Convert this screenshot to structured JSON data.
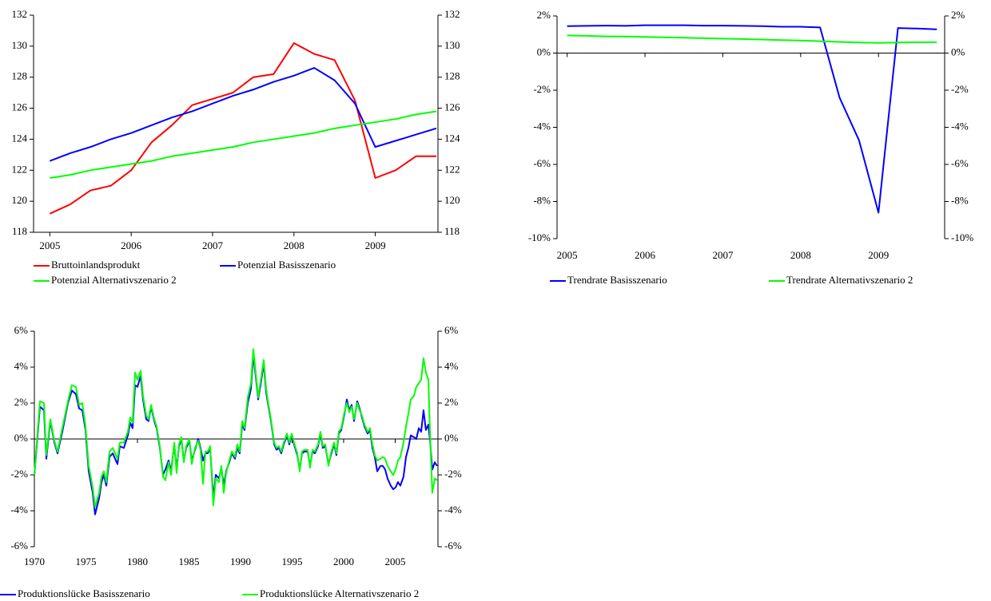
{
  "chart_data": [
    {
      "type": "line",
      "x": [
        2005,
        2005.25,
        2005.5,
        2005.75,
        2006,
        2006.25,
        2006.5,
        2006.75,
        2007,
        2007.25,
        2007.5,
        2007.75,
        2008,
        2008.25,
        2008.5,
        2008.75,
        2009,
        2009.25,
        2009.5,
        2009.75
      ],
      "xlim": [
        2004.8,
        2009.77
      ],
      "xticks": [
        2005,
        2006,
        2007,
        2008,
        2009
      ],
      "ylim": [
        118,
        132
      ],
      "yticks": [
        118,
        120,
        122,
        124,
        126,
        128,
        130,
        132
      ],
      "y2lim": [
        118,
        132
      ],
      "y2ticks": [
        118,
        120,
        122,
        124,
        126,
        128,
        130,
        132
      ],
      "series": [
        {
          "name": "Bruttoinlandsprodukt",
          "color": "#ff0000",
          "values": [
            119.2,
            119.8,
            120.7,
            121.0,
            122.0,
            123.8,
            124.9,
            126.2,
            126.6,
            127.0,
            128.0,
            128.2,
            130.2,
            129.5,
            129.1,
            126.5,
            121.5,
            122.0,
            122.9,
            122.9
          ]
        },
        {
          "name": "Potenzial Basisszenario",
          "color": "#0000ff",
          "values": [
            122.6,
            123.1,
            123.5,
            124.0,
            124.4,
            124.9,
            125.4,
            125.8,
            126.3,
            126.8,
            127.2,
            127.7,
            128.1,
            128.6,
            127.8,
            126.3,
            123.5,
            123.9,
            124.3,
            124.7
          ]
        },
        {
          "name": "Potenzial Alternativszenario 2",
          "color": "#00ff00",
          "values": [
            121.5,
            121.7,
            122.0,
            122.2,
            122.4,
            122.6,
            122.9,
            123.1,
            123.3,
            123.5,
            123.8,
            124.0,
            124.2,
            124.4,
            124.7,
            124.9,
            125.1,
            125.3,
            125.6,
            125.8
          ]
        }
      ]
    },
    {
      "type": "line",
      "x": [
        2005,
        2005.25,
        2005.5,
        2005.75,
        2006,
        2006.25,
        2006.5,
        2006.75,
        2007,
        2007.25,
        2007.5,
        2007.75,
        2008,
        2008.25,
        2008.5,
        2008.75,
        2009,
        2009.25,
        2009.5,
        2009.75
      ],
      "xlim": [
        2004.87,
        2009.85
      ],
      "xticks": [
        2005,
        2006,
        2007,
        2008,
        2009
      ],
      "ylim": [
        -10,
        2
      ],
      "yticks": [
        {
          "value": -10,
          "label": "-10%"
        },
        {
          "value": -8,
          "label": "-8%"
        },
        {
          "value": -6,
          "label": "-6%"
        },
        {
          "value": -4,
          "label": "-4%"
        },
        {
          "value": -2,
          "label": "-2%"
        },
        {
          "value": 0,
          "label": "0%"
        },
        {
          "value": 2,
          "label": "2%"
        }
      ],
      "y2lim": [
        -10,
        2
      ],
      "y2ticks": [
        {
          "value": -10,
          "label": "-10%"
        },
        {
          "value": -8,
          "label": "-8%"
        },
        {
          "value": -6,
          "label": "-6%"
        },
        {
          "value": -4,
          "label": "-4%"
        },
        {
          "value": -2,
          "label": "-2%"
        },
        {
          "value": 0,
          "label": "0%"
        },
        {
          "value": 2,
          "label": "2%"
        }
      ],
      "series": [
        {
          "name": "Trendrate Basisszenario",
          "color": "#0000ff",
          "values": [
            1.45,
            1.47,
            1.48,
            1.47,
            1.5,
            1.5,
            1.5,
            1.48,
            1.48,
            1.47,
            1.45,
            1.42,
            1.42,
            1.38,
            -2.4,
            -4.7,
            -8.6,
            1.35,
            1.32,
            1.28
          ]
        },
        {
          "name": "Trendrate Alternativszenario 2",
          "color": "#00ff00",
          "values": [
            0.95,
            0.93,
            0.9,
            0.89,
            0.87,
            0.85,
            0.83,
            0.8,
            0.78,
            0.76,
            0.73,
            0.7,
            0.68,
            0.64,
            0.6,
            0.57,
            0.55,
            0.57,
            0.58,
            0.58
          ]
        }
      ]
    },
    {
      "type": "line",
      "x": [
        1970.0,
        1970.54,
        1970.93,
        1971.16,
        1971.55,
        1971.94,
        1972.25,
        1972.71,
        1973.26,
        1973.64,
        1974.03,
        1974.34,
        1974.65,
        1974.96,
        1975.27,
        1975.66,
        1975.89,
        1976.28,
        1976.51,
        1976.74,
        1976.98,
        1977.29,
        1977.6,
        1978.06,
        1978.29,
        1978.68,
        1979.07,
        1979.3,
        1979.53,
        1979.77,
        1980.0,
        1980.31,
        1980.54,
        1980.85,
        1981.08,
        1981.32,
        1981.63,
        1981.86,
        1982.17,
        1982.48,
        1982.71,
        1983.02,
        1983.26,
        1983.57,
        1983.8,
        1984.03,
        1984.26,
        1984.5,
        1984.73,
        1985.04,
        1985.27,
        1985.58,
        1985.89,
        1986.12,
        1986.36,
        1986.59,
        1986.82,
        1987.05,
        1987.36,
        1987.6,
        1987.91,
        1988.14,
        1988.37,
        1988.6,
        1988.91,
        1989.15,
        1989.46,
        1989.69,
        1989.92,
        1990.16,
        1990.39,
        1990.7,
        1991.01,
        1991.24,
        1991.47,
        1991.71,
        1991.94,
        1992.25,
        1992.48,
        1992.71,
        1992.95,
        1993.26,
        1993.49,
        1993.72,
        1993.95,
        1994.19,
        1994.5,
        1994.73,
        1994.96,
        1995.19,
        1995.5,
        1995.74,
        1995.97,
        1996.2,
        1996.51,
        1996.74,
        1996.98,
        1997.21,
        1997.52,
        1997.75,
        1997.98,
        1998.22,
        1998.53,
        1998.76,
        1999.07,
        1999.3,
        1999.53,
        1999.77,
        2000.08,
        2000.31,
        2000.54,
        2000.78,
        2001.01,
        2001.32,
        2001.55,
        2001.78,
        2002.02,
        2002.33,
        2002.56,
        2002.79,
        2003.02,
        2003.26,
        2003.57,
        2003.8,
        2004.03,
        2004.26,
        2004.57,
        2004.81,
        2005.04,
        2005.27,
        2005.5,
        2005.81,
        2006.05,
        2006.28,
        2006.51,
        2006.82,
        2007.05,
        2007.29,
        2007.52,
        2007.75,
        2007.98,
        2008.22,
        2008.37,
        2008.6,
        2008.84,
        2009.07
      ],
      "xlim": [
        1970,
        2009.15
      ],
      "xticks": [
        1970,
        1975,
        1980,
        1985,
        1990,
        1995,
        2000,
        2005
      ],
      "ylim": [
        -6,
        6
      ],
      "yticks": [
        {
          "value": -6,
          "label": "-6%"
        },
        {
          "value": -4,
          "label": "-4%"
        },
        {
          "value": -2,
          "label": "-2%"
        },
        {
          "value": 0,
          "label": "0%"
        },
        {
          "value": 2,
          "label": "2%"
        },
        {
          "value": 4,
          "label": "4%"
        },
        {
          "value": 6,
          "label": "6%"
        }
      ],
      "y2lim": [
        -6,
        6
      ],
      "y2ticks": [
        {
          "value": -6,
          "label": "-6%"
        },
        {
          "value": -4,
          "label": "-4%"
        },
        {
          "value": -2,
          "label": "-2%"
        },
        {
          "value": 0,
          "label": "0%"
        },
        {
          "value": 2,
          "label": "2%"
        },
        {
          "value": 4,
          "label": "4%"
        },
        {
          "value": 6,
          "label": "6%"
        }
      ],
      "series": [
        {
          "name": "Produktionslücke Basisszenario",
          "color": "#0000ff",
          "values": [
            -2.0,
            1.8,
            1.6,
            -1.1,
            1.0,
            -0.2,
            -0.8,
            0.4,
            2.0,
            2.7,
            2.5,
            1.7,
            1.6,
            0.5,
            -1.8,
            -3.0,
            -4.2,
            -3.3,
            -2.4,
            -2.0,
            -2.6,
            -1.0,
            -0.8,
            -1.4,
            -0.4,
            -0.5,
            0.2,
            0.9,
            0.6,
            3.0,
            2.9,
            3.5,
            2.2,
            1.1,
            1.0,
            1.8,
            1.0,
            0.6,
            -0.5,
            -2.0,
            -1.7,
            -1.2,
            -1.8,
            -0.3,
            -1.7,
            -0.4,
            0.0,
            -1.2,
            -0.5,
            -0.1,
            -1.2,
            -0.6,
            0.0,
            -0.5,
            -1.2,
            -0.8,
            -0.8,
            -0.5,
            -3.3,
            -2.0,
            -2.2,
            -1.6,
            -2.6,
            -1.8,
            -1.3,
            -0.8,
            -1.1,
            -0.5,
            -0.8,
            0.8,
            0.5,
            2.0,
            2.8,
            4.7,
            3.5,
            2.2,
            3.0,
            4.2,
            2.6,
            1.8,
            1.0,
            -0.3,
            -0.6,
            -0.5,
            -0.8,
            -0.3,
            0.2,
            -0.3,
            0.2,
            -0.3,
            -0.9,
            -1.7,
            -0.8,
            -0.7,
            -0.7,
            -1.5,
            -0.7,
            -0.8,
            -0.4,
            0.3,
            -0.5,
            -0.4,
            -1.4,
            -0.9,
            -0.3,
            -0.9,
            0.3,
            0.5,
            1.4,
            2.2,
            1.6,
            1.9,
            1.0,
            2.1,
            1.7,
            1.2,
            0.7,
            0.3,
            0.5,
            -0.5,
            -1.0,
            -1.8,
            -1.5,
            -1.5,
            -1.7,
            -2.2,
            -2.6,
            -2.8,
            -2.7,
            -2.4,
            -2.6,
            -2.1,
            -1.0,
            -0.5,
            0.2,
            0.1,
            0.0,
            0.6,
            0.4,
            1.6,
            0.5,
            0.8,
            0.0,
            -1.7,
            -1.3,
            -1.5
          ]
        },
        {
          "name": "Produktionslücke Alternativszenario 2",
          "color": "#00ff00",
          "values": [
            -2.0,
            2.1,
            2.0,
            -0.9,
            1.1,
            -0.1,
            -0.7,
            0.6,
            2.1,
            3.0,
            2.9,
            1.9,
            2.0,
            0.7,
            -1.5,
            -2.7,
            -3.8,
            -3.0,
            -2.1,
            -1.8,
            -2.4,
            -0.7,
            -0.5,
            -1.1,
            -0.2,
            -0.2,
            0.4,
            1.2,
            0.9,
            3.7,
            3.3,
            3.8,
            2.4,
            1.3,
            1.1,
            1.9,
            1.1,
            0.7,
            -0.4,
            -2.1,
            -2.3,
            -1.3,
            -2.0,
            -0.2,
            -1.9,
            -0.3,
            0.1,
            -1.3,
            -0.4,
            0.0,
            -1.4,
            -0.5,
            -0.1,
            -0.6,
            -2.5,
            -0.7,
            -0.7,
            -0.4,
            -3.7,
            -2.2,
            -2.4,
            -1.5,
            -3.0,
            -1.9,
            -1.2,
            -0.7,
            -1.0,
            -0.3,
            -0.7,
            1.0,
            0.6,
            2.3,
            3.1,
            5.0,
            3.7,
            2.3,
            3.2,
            4.4,
            2.8,
            1.9,
            1.1,
            -0.2,
            -0.5,
            -0.4,
            -0.7,
            -0.2,
            0.3,
            -0.2,
            0.3,
            -0.2,
            -0.8,
            -1.8,
            -0.7,
            -0.6,
            -0.6,
            -1.6,
            -0.6,
            -0.7,
            -0.3,
            0.4,
            -0.4,
            -0.3,
            -1.5,
            -0.8,
            -0.2,
            -0.8,
            0.4,
            0.6,
            1.5,
            2.0,
            1.5,
            1.8,
            1.1,
            2.0,
            1.6,
            1.3,
            0.8,
            0.4,
            0.6,
            -0.3,
            -0.9,
            -1.2,
            -1.1,
            -1.0,
            -1.1,
            -1.5,
            -1.8,
            -2.0,
            -1.7,
            -1.2,
            -1.0,
            -0.2,
            0.7,
            1.4,
            2.2,
            2.4,
            2.9,
            3.1,
            3.3,
            4.5,
            3.7,
            3.3,
            0.5,
            -3.0,
            -2.2,
            -2.3
          ]
        }
      ]
    }
  ]
}
